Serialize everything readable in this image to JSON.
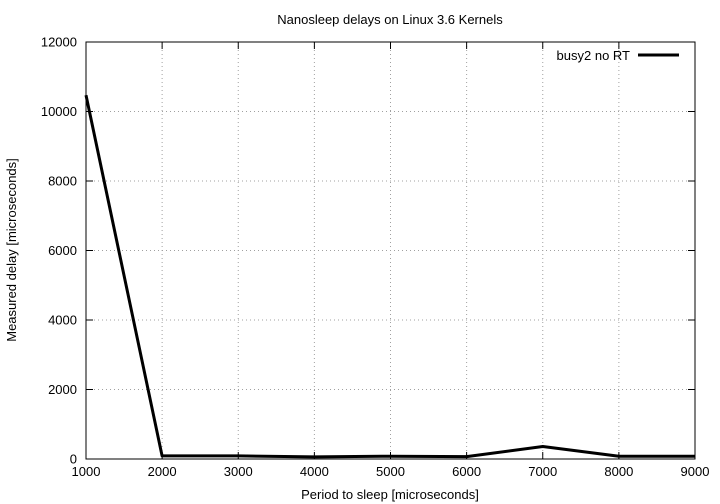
{
  "chart_data": {
    "type": "line",
    "title": "Nanosleep delays on Linux 3.6 Kernels",
    "xlabel": "Period to sleep [microseconds]",
    "ylabel": "Measured delay [microseconds]",
    "xlim": [
      1000,
      9000
    ],
    "ylim": [
      0,
      12000
    ],
    "xticks": [
      1000,
      2000,
      3000,
      4000,
      5000,
      6000,
      7000,
      8000,
      9000
    ],
    "yticks": [
      0,
      2000,
      4000,
      6000,
      8000,
      10000,
      12000
    ],
    "x_tick_labels": [
      "1000",
      "2000",
      "3000",
      "4000",
      "5000",
      "6000",
      "7000",
      "8000",
      "9000"
    ],
    "y_tick_labels": [
      "0",
      "2000",
      "4000",
      "6000",
      "8000",
      "10000",
      "12000"
    ],
    "grid": true,
    "legend_position": "top-right",
    "series": [
      {
        "name": "busy2 no RT",
        "color": "#000000",
        "x": [
          1000,
          2000,
          3000,
          4000,
          5000,
          6000,
          7000,
          8000,
          9000
        ],
        "y": [
          10470,
          90,
          90,
          60,
          80,
          70,
          360,
          80,
          80
        ]
      }
    ]
  }
}
